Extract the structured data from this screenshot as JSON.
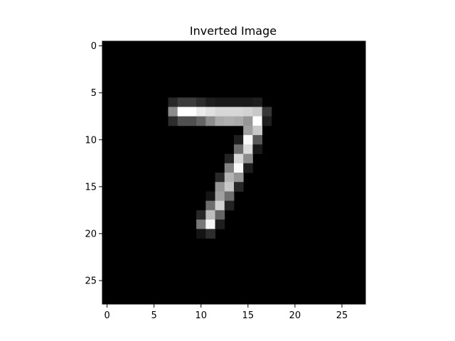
{
  "chart_data": {
    "type": "heatmap",
    "title": "Inverted Image",
    "xlabel": "",
    "ylabel": "",
    "colormap": "gray",
    "value_range": [
      0,
      255
    ],
    "rows": 28,
    "cols": 28,
    "xlim": [
      -0.5,
      27.5
    ],
    "ylim": [
      27.5,
      -0.5
    ],
    "x_ticks": [
      0,
      5,
      10,
      15,
      20,
      25
    ],
    "x_tick_labels": [
      "0",
      "5",
      "10",
      "15",
      "20",
      "25"
    ],
    "y_ticks": [
      0,
      5,
      10,
      15,
      20,
      25
    ],
    "y_tick_labels": [
      "0",
      "5",
      "10",
      "15",
      "20",
      "25"
    ],
    "pixels": [
      [
        6,
        7,
        40
      ],
      [
        6,
        8,
        60
      ],
      [
        6,
        9,
        60
      ],
      [
        6,
        10,
        45
      ],
      [
        6,
        11,
        30
      ],
      [
        6,
        12,
        25
      ],
      [
        6,
        13,
        25
      ],
      [
        6,
        14,
        25
      ],
      [
        6,
        15,
        25
      ],
      [
        6,
        16,
        30
      ],
      [
        7,
        7,
        140
      ],
      [
        7,
        8,
        255
      ],
      [
        7,
        9,
        255
      ],
      [
        7,
        10,
        235
      ],
      [
        7,
        11,
        225
      ],
      [
        7,
        12,
        215
      ],
      [
        7,
        13,
        215
      ],
      [
        7,
        14,
        215
      ],
      [
        7,
        15,
        210
      ],
      [
        7,
        16,
        200
      ],
      [
        7,
        17,
        55
      ],
      [
        8,
        7,
        45
      ],
      [
        8,
        8,
        80
      ],
      [
        8,
        9,
        80
      ],
      [
        8,
        10,
        100
      ],
      [
        8,
        11,
        140
      ],
      [
        8,
        12,
        170
      ],
      [
        8,
        13,
        175
      ],
      [
        8,
        14,
        170
      ],
      [
        8,
        15,
        150
      ],
      [
        8,
        16,
        255
      ],
      [
        8,
        17,
        30
      ],
      [
        9,
        15,
        160
      ],
      [
        9,
        16,
        200
      ],
      [
        10,
        14,
        30
      ],
      [
        10,
        15,
        250
      ],
      [
        10,
        16,
        90
      ],
      [
        11,
        14,
        110
      ],
      [
        11,
        15,
        220
      ],
      [
        11,
        16,
        25
      ],
      [
        12,
        13,
        35
      ],
      [
        12,
        14,
        215
      ],
      [
        12,
        15,
        140
      ],
      [
        13,
        13,
        130
      ],
      [
        13,
        14,
        250
      ],
      [
        13,
        15,
        30
      ],
      [
        14,
        12,
        40
      ],
      [
        14,
        13,
        180
      ],
      [
        14,
        14,
        150
      ],
      [
        15,
        12,
        150
      ],
      [
        15,
        13,
        200
      ],
      [
        15,
        14,
        40
      ],
      [
        16,
        11,
        20
      ],
      [
        16,
        12,
        160
      ],
      [
        16,
        13,
        110
      ],
      [
        17,
        11,
        110
      ],
      [
        17,
        12,
        210
      ],
      [
        17,
        13,
        35
      ],
      [
        18,
        10,
        40
      ],
      [
        18,
        11,
        190
      ],
      [
        18,
        12,
        100
      ],
      [
        19,
        10,
        120
      ],
      [
        19,
        11,
        245
      ],
      [
        19,
        12,
        30
      ],
      [
        20,
        10,
        20
      ],
      [
        20,
        11,
        45
      ]
    ]
  }
}
